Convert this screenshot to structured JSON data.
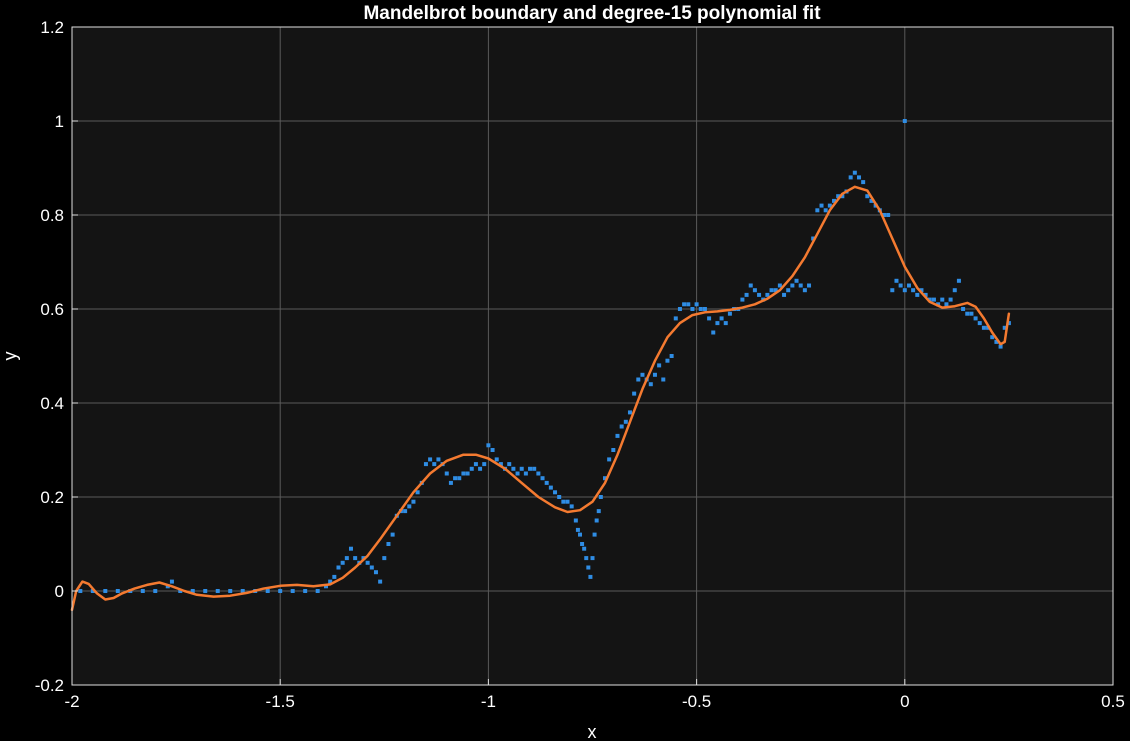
{
  "chart_data": {
    "type": "scatter",
    "title": "Mandelbrot boundary and degree-15 polynomial fit",
    "xlabel": "x",
    "ylabel": "y",
    "xlim": [
      -2,
      0.5
    ],
    "ylim": [
      -0.2,
      1.2
    ],
    "grid": true,
    "x_ticks": [
      -2,
      -1.5,
      -1,
      -0.5,
      0,
      0.5
    ],
    "x_tick_labels": [
      "-2",
      "-1.5",
      "-1",
      "-0.5",
      "0",
      "0.5"
    ],
    "y_ticks": [
      -0.2,
      0,
      0.2,
      0.4,
      0.6,
      0.8,
      1,
      1.2
    ],
    "y_tick_labels": [
      "-0.2",
      "0",
      "0.2",
      "0.4",
      "0.6",
      "0.8",
      "1",
      "1.2"
    ],
    "colors": {
      "background": "#000000",
      "plot_area": "#141414",
      "scatter": "#2f8de4",
      "fit": "#f47a30"
    },
    "series": [
      {
        "kind": "scatter",
        "points": [
          [
            -1.98,
            0
          ],
          [
            -1.95,
            0
          ],
          [
            -1.92,
            0
          ],
          [
            -1.89,
            0
          ],
          [
            -1.86,
            0
          ],
          [
            -1.83,
            0
          ],
          [
            -1.8,
            0
          ],
          [
            -1.77,
            0.01
          ],
          [
            -1.76,
            0.02
          ],
          [
            -1.74,
            0
          ],
          [
            -1.71,
            0
          ],
          [
            -1.68,
            0
          ],
          [
            -1.65,
            0
          ],
          [
            -1.62,
            0
          ],
          [
            -1.59,
            0
          ],
          [
            -1.56,
            0
          ],
          [
            -1.53,
            0
          ],
          [
            -1.5,
            0
          ],
          [
            -1.47,
            0
          ],
          [
            -1.44,
            0
          ],
          [
            -1.41,
            0
          ],
          [
            -1.39,
            0.01
          ],
          [
            -1.38,
            0.02
          ],
          [
            -1.37,
            0.03
          ],
          [
            -1.36,
            0.05
          ],
          [
            -1.35,
            0.06
          ],
          [
            -1.34,
            0.07
          ],
          [
            -1.33,
            0.09
          ],
          [
            -1.32,
            0.07
          ],
          [
            -1.31,
            0.06
          ],
          [
            -1.3,
            0.07
          ],
          [
            -1.29,
            0.06
          ],
          [
            -1.28,
            0.05
          ],
          [
            -1.27,
            0.04
          ],
          [
            -1.26,
            0.02
          ],
          [
            -1.25,
            0.07
          ],
          [
            -1.24,
            0.1
          ],
          [
            -1.23,
            0.12
          ],
          [
            -1.22,
            0.16
          ],
          [
            -1.21,
            0.17
          ],
          [
            -1.2,
            0.17
          ],
          [
            -1.19,
            0.18
          ],
          [
            -1.18,
            0.19
          ],
          [
            -1.17,
            0.21
          ],
          [
            -1.16,
            0.23
          ],
          [
            -1.15,
            0.27
          ],
          [
            -1.14,
            0.28
          ],
          [
            -1.13,
            0.27
          ],
          [
            -1.12,
            0.28
          ],
          [
            -1.11,
            0.27
          ],
          [
            -1.1,
            0.25
          ],
          [
            -1.09,
            0.23
          ],
          [
            -1.08,
            0.24
          ],
          [
            -1.07,
            0.24
          ],
          [
            -1.06,
            0.25
          ],
          [
            -1.05,
            0.25
          ],
          [
            -1.04,
            0.26
          ],
          [
            -1.03,
            0.27
          ],
          [
            -1.02,
            0.26
          ],
          [
            -1.01,
            0.27
          ],
          [
            -1,
            0.31
          ],
          [
            -0.99,
            0.3
          ],
          [
            -0.98,
            0.28
          ],
          [
            -0.97,
            0.27
          ],
          [
            -0.96,
            0.26
          ],
          [
            -0.95,
            0.27
          ],
          [
            -0.94,
            0.26
          ],
          [
            -0.93,
            0.25
          ],
          [
            -0.92,
            0.26
          ],
          [
            -0.91,
            0.25
          ],
          [
            -0.9,
            0.26
          ],
          [
            -0.89,
            0.26
          ],
          [
            -0.88,
            0.25
          ],
          [
            -0.87,
            0.24
          ],
          [
            -0.86,
            0.23
          ],
          [
            -0.85,
            0.22
          ],
          [
            -0.84,
            0.21
          ],
          [
            -0.83,
            0.2
          ],
          [
            -0.82,
            0.19
          ],
          [
            -0.81,
            0.19
          ],
          [
            -0.8,
            0.18
          ],
          [
            -0.79,
            0.15
          ],
          [
            -0.785,
            0.13
          ],
          [
            -0.78,
            0.12
          ],
          [
            -0.775,
            0.1
          ],
          [
            -0.77,
            0.09
          ],
          [
            -0.765,
            0.07
          ],
          [
            -0.76,
            0.05
          ],
          [
            -0.755,
            0.03
          ],
          [
            -0.75,
            0.07
          ],
          [
            -0.745,
            0.12
          ],
          [
            -0.74,
            0.15
          ],
          [
            -0.735,
            0.17
          ],
          [
            -0.73,
            0.2
          ],
          [
            -0.72,
            0.24
          ],
          [
            -0.71,
            0.28
          ],
          [
            -0.7,
            0.3
          ],
          [
            -0.69,
            0.33
          ],
          [
            -0.68,
            0.35
          ],
          [
            -0.67,
            0.36
          ],
          [
            -0.66,
            0.38
          ],
          [
            -0.65,
            0.42
          ],
          [
            -0.64,
            0.45
          ],
          [
            -0.63,
            0.46
          ],
          [
            -0.62,
            0.45
          ],
          [
            -0.61,
            0.44
          ],
          [
            -0.6,
            0.46
          ],
          [
            -0.59,
            0.48
          ],
          [
            -0.58,
            0.45
          ],
          [
            -0.57,
            0.49
          ],
          [
            -0.56,
            0.5
          ],
          [
            -0.55,
            0.58
          ],
          [
            -0.54,
            0.6
          ],
          [
            -0.53,
            0.61
          ],
          [
            -0.52,
            0.61
          ],
          [
            -0.51,
            0.6
          ],
          [
            -0.5,
            0.61
          ],
          [
            -0.49,
            0.6
          ],
          [
            -0.48,
            0.6
          ],
          [
            -0.47,
            0.58
          ],
          [
            -0.46,
            0.55
          ],
          [
            -0.45,
            0.57
          ],
          [
            -0.44,
            0.58
          ],
          [
            -0.43,
            0.57
          ],
          [
            -0.42,
            0.59
          ],
          [
            -0.41,
            0.6
          ],
          [
            -0.4,
            0.6
          ],
          [
            -0.39,
            0.62
          ],
          [
            -0.38,
            0.63
          ],
          [
            -0.37,
            0.65
          ],
          [
            -0.36,
            0.64
          ],
          [
            -0.35,
            0.63
          ],
          [
            -0.34,
            0.62
          ],
          [
            -0.33,
            0.63
          ],
          [
            -0.32,
            0.64
          ],
          [
            -0.31,
            0.64
          ],
          [
            -0.3,
            0.65
          ],
          [
            -0.29,
            0.63
          ],
          [
            -0.28,
            0.64
          ],
          [
            -0.27,
            0.65
          ],
          [
            -0.26,
            0.66
          ],
          [
            -0.25,
            0.65
          ],
          [
            -0.24,
            0.64
          ],
          [
            -0.23,
            0.65
          ],
          [
            -0.22,
            0.75
          ],
          [
            -0.21,
            0.81
          ],
          [
            -0.2,
            0.82
          ],
          [
            -0.19,
            0.81
          ],
          [
            -0.18,
            0.82
          ],
          [
            -0.17,
            0.83
          ],
          [
            -0.16,
            0.84
          ],
          [
            -0.15,
            0.84
          ],
          [
            -0.14,
            0.85
          ],
          [
            -0.13,
            0.88
          ],
          [
            -0.12,
            0.89
          ],
          [
            -0.11,
            0.88
          ],
          [
            -0.1,
            0.87
          ],
          [
            -0.09,
            0.84
          ],
          [
            -0.08,
            0.83
          ],
          [
            -0.07,
            0.82
          ],
          [
            -0.06,
            0.81
          ],
          [
            -0.05,
            0.8
          ],
          [
            -0.04,
            0.8
          ],
          [
            -0.03,
            0.64
          ],
          [
            -0.02,
            0.66
          ],
          [
            -0.01,
            0.65
          ],
          [
            0,
            0.64
          ],
          [
            0.01,
            0.65
          ],
          [
            0.02,
            0.64
          ],
          [
            0.03,
            0.63
          ],
          [
            0.04,
            0.64
          ],
          [
            0.05,
            0.63
          ],
          [
            0.06,
            0.62
          ],
          [
            0.07,
            0.62
          ],
          [
            0.08,
            0.61
          ],
          [
            0.09,
            0.62
          ],
          [
            0.1,
            0.61
          ],
          [
            0.11,
            0.62
          ],
          [
            0.12,
            0.64
          ],
          [
            0.13,
            0.66
          ],
          [
            0.14,
            0.6
          ],
          [
            0.15,
            0.59
          ],
          [
            0.16,
            0.59
          ],
          [
            0.17,
            0.58
          ],
          [
            0.18,
            0.57
          ],
          [
            0.19,
            0.56
          ],
          [
            0.2,
            0.56
          ],
          [
            0.21,
            0.54
          ],
          [
            0.22,
            0.53
          ],
          [
            0.23,
            0.52
          ],
          [
            0.24,
            0.56
          ],
          [
            0.25,
            0.57
          ],
          [
            0,
            1
          ]
        ]
      },
      {
        "kind": "line",
        "points": [
          [
            -2,
            -0.04
          ],
          [
            -1.99,
            0
          ],
          [
            -1.975,
            0.02
          ],
          [
            -1.96,
            0.015
          ],
          [
            -1.94,
            -0.005
          ],
          [
            -1.92,
            -0.018
          ],
          [
            -1.9,
            -0.015
          ],
          [
            -1.88,
            -0.005
          ],
          [
            -1.85,
            0.005
          ],
          [
            -1.82,
            0.013
          ],
          [
            -1.79,
            0.018
          ],
          [
            -1.76,
            0.01
          ],
          [
            -1.73,
            0
          ],
          [
            -1.7,
            -0.008
          ],
          [
            -1.66,
            -0.012
          ],
          [
            -1.62,
            -0.01
          ],
          [
            -1.58,
            -0.004
          ],
          [
            -1.54,
            0.005
          ],
          [
            -1.5,
            0.011
          ],
          [
            -1.46,
            0.013
          ],
          [
            -1.42,
            0.01
          ],
          [
            -1.38,
            0.014
          ],
          [
            -1.35,
            0.028
          ],
          [
            -1.32,
            0.05
          ],
          [
            -1.29,
            0.075
          ],
          [
            -1.26,
            0.11
          ],
          [
            -1.22,
            0.16
          ],
          [
            -1.18,
            0.21
          ],
          [
            -1.14,
            0.25
          ],
          [
            -1.1,
            0.277
          ],
          [
            -1.06,
            0.29
          ],
          [
            -1.03,
            0.29
          ],
          [
            -1,
            0.282
          ],
          [
            -0.96,
            0.26
          ],
          [
            -0.92,
            0.23
          ],
          [
            -0.88,
            0.2
          ],
          [
            -0.84,
            0.178
          ],
          [
            -0.81,
            0.168
          ],
          [
            -0.78,
            0.172
          ],
          [
            -0.75,
            0.19
          ],
          [
            -0.72,
            0.23
          ],
          [
            -0.69,
            0.29
          ],
          [
            -0.66,
            0.36
          ],
          [
            -0.63,
            0.43
          ],
          [
            -0.6,
            0.49
          ],
          [
            -0.57,
            0.54
          ],
          [
            -0.54,
            0.57
          ],
          [
            -0.51,
            0.587
          ],
          [
            -0.48,
            0.593
          ],
          [
            -0.45,
            0.595
          ],
          [
            -0.42,
            0.598
          ],
          [
            -0.39,
            0.603
          ],
          [
            -0.36,
            0.61
          ],
          [
            -0.33,
            0.622
          ],
          [
            -0.3,
            0.64
          ],
          [
            -0.27,
            0.67
          ],
          [
            -0.24,
            0.71
          ],
          [
            -0.21,
            0.76
          ],
          [
            -0.18,
            0.81
          ],
          [
            -0.15,
            0.845
          ],
          [
            -0.12,
            0.86
          ],
          [
            -0.09,
            0.852
          ],
          [
            -0.06,
            0.81
          ],
          [
            -0.03,
            0.75
          ],
          [
            0,
            0.69
          ],
          [
            0.03,
            0.645
          ],
          [
            0.06,
            0.615
          ],
          [
            0.09,
            0.603
          ],
          [
            0.12,
            0.606
          ],
          [
            0.15,
            0.613
          ],
          [
            0.17,
            0.605
          ],
          [
            0.19,
            0.58
          ],
          [
            0.21,
            0.55
          ],
          [
            0.23,
            0.525
          ],
          [
            0.24,
            0.53
          ],
          [
            0.25,
            0.59
          ]
        ]
      }
    ]
  }
}
